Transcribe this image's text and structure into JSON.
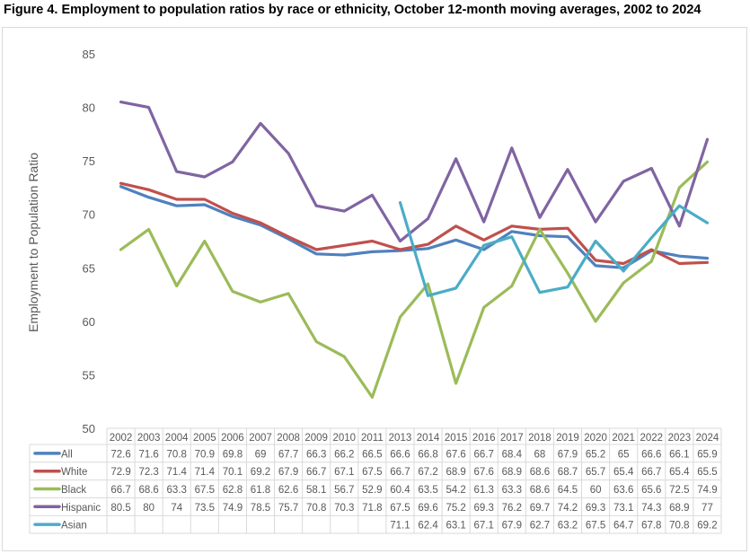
{
  "chart_data": {
    "type": "line",
    "title": "Figure 4. Employment to population ratios by race or ethnicity, October 12-month moving averages, 2002 to 2024",
    "xlabel": "",
    "ylabel": "Employment to Population Ratio",
    "ylim": [
      50,
      85
    ],
    "yticks": [
      50,
      55,
      60,
      65,
      70,
      75,
      80,
      85
    ],
    "grid": false,
    "legend": "data-table",
    "categories": [
      "2002",
      "2003",
      "2004",
      "2005",
      "2006",
      "2007",
      "2008",
      "2009",
      "2010",
      "2011",
      "2013",
      "2014",
      "2015",
      "2016",
      "2017",
      "2018",
      "2019",
      "2020",
      "2021",
      "2022",
      "2023",
      "2024"
    ],
    "series": [
      {
        "name": "All",
        "color": "#4F81BD",
        "values": [
          72.6,
          71.6,
          70.8,
          70.9,
          69.8,
          69,
          67.7,
          66.3,
          66.2,
          66.5,
          66.6,
          66.8,
          67.6,
          66.7,
          68.4,
          68,
          67.9,
          65.2,
          65,
          66.6,
          66.1,
          65.9
        ]
      },
      {
        "name": "White",
        "color": "#C0504D",
        "values": [
          72.9,
          72.3,
          71.4,
          71.4,
          70.1,
          69.2,
          67.9,
          66.7,
          67.1,
          67.5,
          66.7,
          67.2,
          68.9,
          67.6,
          68.9,
          68.6,
          68.7,
          65.7,
          65.4,
          66.7,
          65.4,
          65.5
        ]
      },
      {
        "name": "Black",
        "color": "#9BBB59",
        "values": [
          66.7,
          68.6,
          63.3,
          67.5,
          62.8,
          61.8,
          62.6,
          58.1,
          56.7,
          52.9,
          60.4,
          63.5,
          54.2,
          61.3,
          63.3,
          68.6,
          64.5,
          60,
          63.6,
          65.6,
          72.5,
          74.9
        ]
      },
      {
        "name": "Hispanic",
        "color": "#8064A2",
        "values": [
          80.5,
          80,
          74,
          73.5,
          74.9,
          78.5,
          75.7,
          70.8,
          70.3,
          71.8,
          67.5,
          69.6,
          75.2,
          69.3,
          76.2,
          69.7,
          74.2,
          69.3,
          73.1,
          74.3,
          68.9,
          77
        ]
      },
      {
        "name": "Asian",
        "color": "#4BACC6",
        "values": [
          null,
          null,
          null,
          null,
          null,
          null,
          null,
          null,
          null,
          null,
          71.1,
          62.4,
          63.1,
          67.1,
          67.9,
          62.7,
          63.2,
          67.5,
          64.7,
          67.8,
          70.8,
          69.2
        ]
      }
    ]
  }
}
